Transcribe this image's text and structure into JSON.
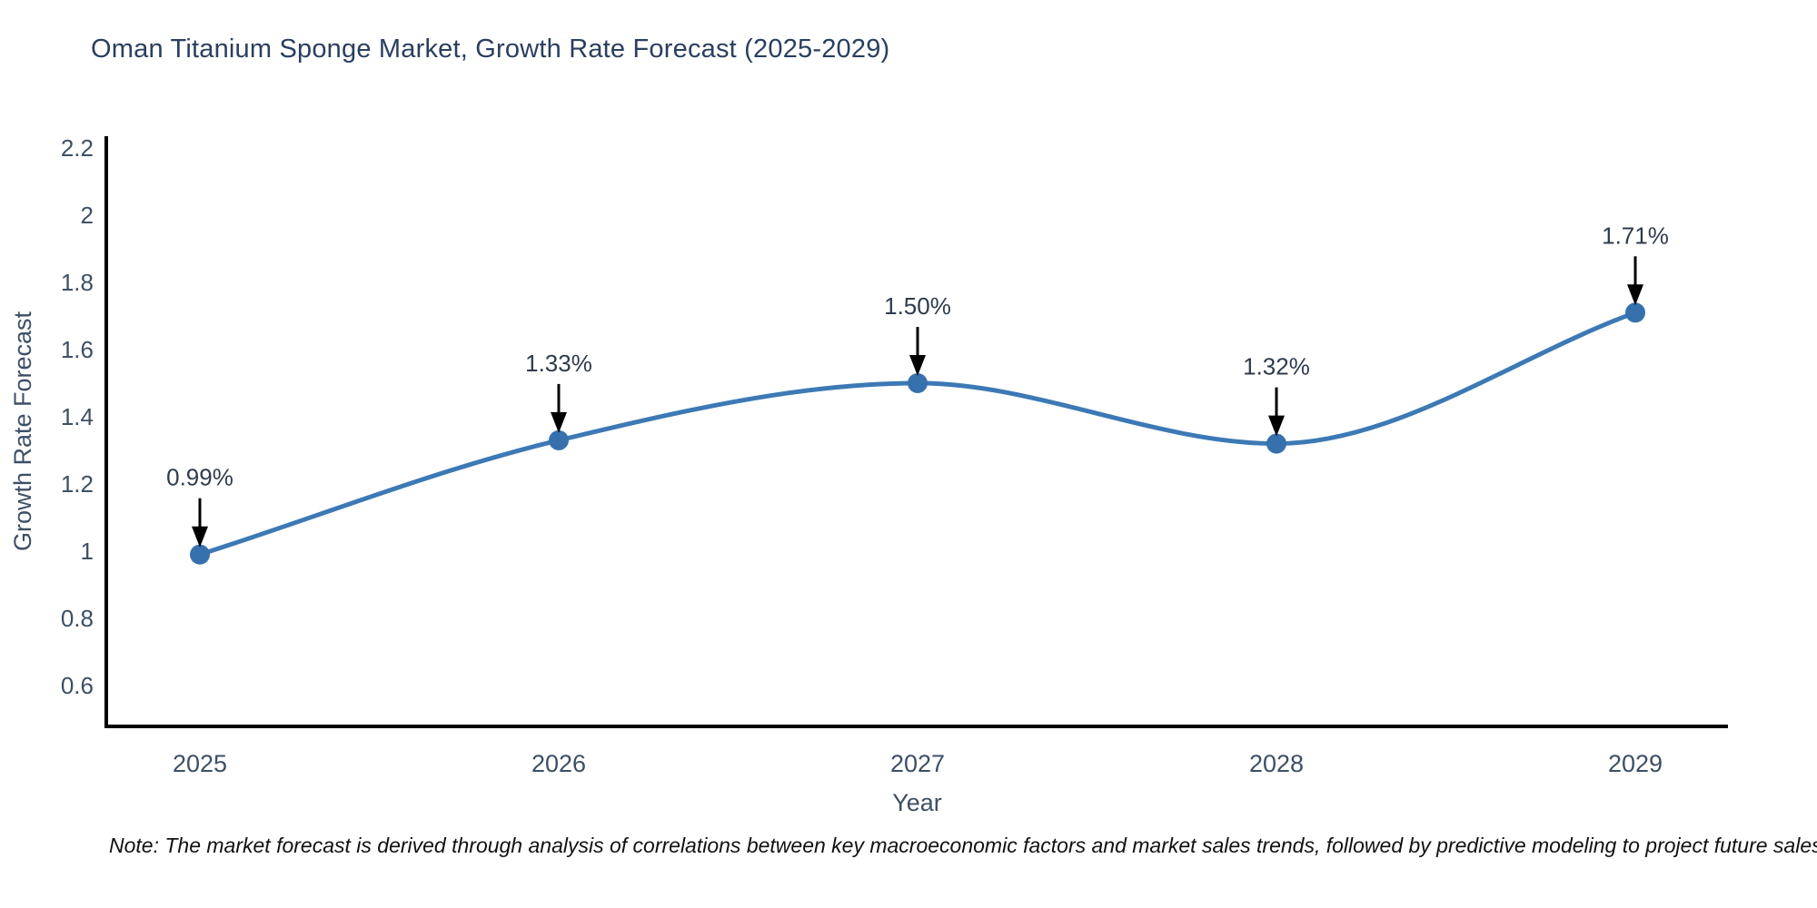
{
  "page": {
    "background": "#ffffff"
  },
  "header": {
    "title": "Oman Titanium Sponge Market, Growth Rate Forecast (2025-2029)"
  },
  "footnote": {
    "text": "Note: The market forecast is derived through analysis of correlations between key macroeconomic factors and market sales trends, followed by predictive modeling to project future sales"
  },
  "chart_data": {
    "type": "line",
    "title": "Oman Titanium Sponge Market, Growth Rate Forecast (2025-2029)",
    "x": [
      2025,
      2026,
      2027,
      2028,
      2029
    ],
    "values": [
      0.99,
      1.33,
      1.5,
      1.32,
      1.71
    ],
    "point_labels": [
      "0.99%",
      "1.33%",
      "1.50%",
      "1.32%",
      "1.71%"
    ],
    "xlabel": "Year",
    "ylabel": "Growth Rate Forecast",
    "xtick_labels": [
      "2025",
      "2026",
      "2027",
      "2028",
      "2029"
    ],
    "ytick_values": [
      0.6,
      0.8,
      1,
      1.2,
      1.4,
      1.6,
      1.8,
      2,
      2.2
    ],
    "ytick_labels": [
      "0.6",
      "0.8",
      "1",
      "1.2",
      "1.4",
      "1.6",
      "1.8",
      "2",
      "2.2"
    ],
    "ylim": [
      0.48,
      2.27
    ],
    "line_shape": "spline",
    "grid": false,
    "legend": false,
    "markers": true,
    "annotations_have_arrows": true,
    "colors": {
      "line": "#3c79b5",
      "marker": "#3671ad",
      "axis": "#000000",
      "title_text": "#2a3f5f",
      "tick_text": "#3d4f65",
      "axis_label_text": "#3d4f65",
      "annotation_text": "#2f3b4c",
      "arrow": "#000000",
      "note_text": "#111111"
    }
  }
}
